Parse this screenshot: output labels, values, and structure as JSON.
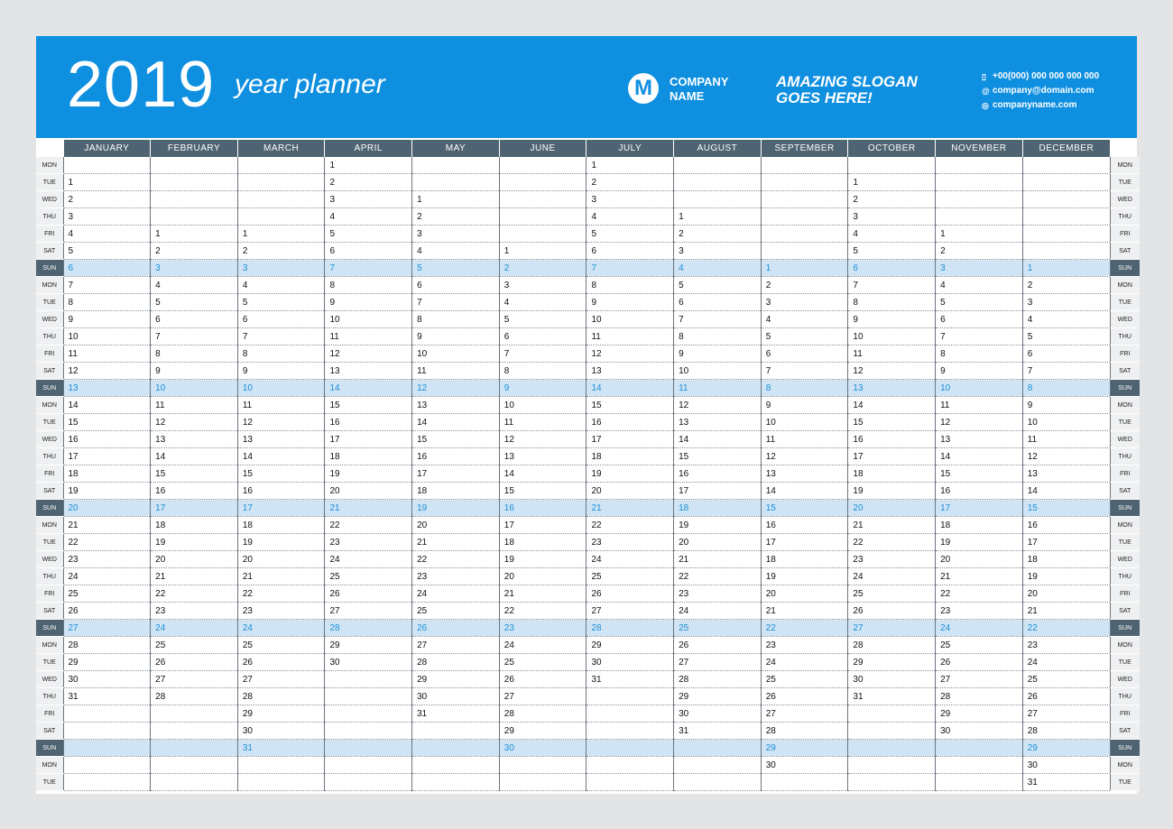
{
  "header": {
    "year": "2019",
    "subtitle": "year planner",
    "logo_letter": "M",
    "company_line1": "COMPANY",
    "company_line2": "NAME",
    "slogan_line1": "AMAZING SLOGAN",
    "slogan_line2": "GOES HERE!",
    "phone": "+00(000) 000 000 000 000",
    "email": "company@domain.com",
    "website": "companyname.com"
  },
  "colors": {
    "header_bg": "#0f8fe0",
    "month_header_bg": "#4f6472",
    "sunday_row_bg": "#cfe4f5",
    "sunday_text": "#1c8fd6"
  },
  "icons": {
    "phone": "phone-icon",
    "email": "email-icon",
    "web": "globe-icon",
    "logo": "m-logo-icon"
  },
  "months": [
    "JANUARY",
    "FEBRUARY",
    "MARCH",
    "APRIL",
    "MAY",
    "JUNE",
    "JULY",
    "AUGUST",
    "SEPTEMBER",
    "OCTOBER",
    "NOVEMBER",
    "DECEMBER"
  ],
  "rows": [
    {
      "label": "MON",
      "cells": [
        "",
        "",
        "",
        "1",
        "",
        "",
        "1",
        "",
        "",
        "",
        "",
        ""
      ]
    },
    {
      "label": "TUE",
      "cells": [
        "1",
        "",
        "",
        "2",
        "",
        "",
        "2",
        "",
        "",
        "1",
        "",
        ""
      ]
    },
    {
      "label": "WED",
      "cells": [
        "2",
        "",
        "",
        "3",
        "1",
        "",
        "3",
        "",
        "",
        "2",
        "",
        ""
      ]
    },
    {
      "label": "THU",
      "cells": [
        "3",
        "",
        "",
        "4",
        "2",
        "",
        "4",
        "1",
        "",
        "3",
        "",
        ""
      ]
    },
    {
      "label": "FRI",
      "cells": [
        "4",
        "1",
        "1",
        "5",
        "3",
        "",
        "5",
        "2",
        "",
        "4",
        "1",
        ""
      ]
    },
    {
      "label": "SAT",
      "cells": [
        "5",
        "2",
        "2",
        "6",
        "4",
        "1",
        "6",
        "3",
        "",
        "5",
        "2",
        ""
      ]
    },
    {
      "label": "SUN",
      "cells": [
        "6",
        "3",
        "3",
        "7",
        "5",
        "2",
        "7",
        "4",
        "1",
        "6",
        "3",
        "1"
      ]
    },
    {
      "label": "MON",
      "cells": [
        "7",
        "4",
        "4",
        "8",
        "6",
        "3",
        "8",
        "5",
        "2",
        "7",
        "4",
        "2"
      ]
    },
    {
      "label": "TUE",
      "cells": [
        "8",
        "5",
        "5",
        "9",
        "7",
        "4",
        "9",
        "6",
        "3",
        "8",
        "5",
        "3"
      ]
    },
    {
      "label": "WED",
      "cells": [
        "9",
        "6",
        "6",
        "10",
        "8",
        "5",
        "10",
        "7",
        "4",
        "9",
        "6",
        "4"
      ]
    },
    {
      "label": "THU",
      "cells": [
        "10",
        "7",
        "7",
        "11",
        "9",
        "6",
        "11",
        "8",
        "5",
        "10",
        "7",
        "5"
      ]
    },
    {
      "label": "FRI",
      "cells": [
        "11",
        "8",
        "8",
        "12",
        "10",
        "7",
        "12",
        "9",
        "6",
        "11",
        "8",
        "6"
      ]
    },
    {
      "label": "SAT",
      "cells": [
        "12",
        "9",
        "9",
        "13",
        "11",
        "8",
        "13",
        "10",
        "7",
        "12",
        "9",
        "7"
      ]
    },
    {
      "label": "SUN",
      "cells": [
        "13",
        "10",
        "10",
        "14",
        "12",
        "9",
        "14",
        "11",
        "8",
        "13",
        "10",
        "8"
      ]
    },
    {
      "label": "MON",
      "cells": [
        "14",
        "11",
        "11",
        "15",
        "13",
        "10",
        "15",
        "12",
        "9",
        "14",
        "11",
        "9"
      ]
    },
    {
      "label": "TUE",
      "cells": [
        "15",
        "12",
        "12",
        "16",
        "14",
        "11",
        "16",
        "13",
        "10",
        "15",
        "12",
        "10"
      ]
    },
    {
      "label": "WED",
      "cells": [
        "16",
        "13",
        "13",
        "17",
        "15",
        "12",
        "17",
        "14",
        "11",
        "16",
        "13",
        "11"
      ]
    },
    {
      "label": "THU",
      "cells": [
        "17",
        "14",
        "14",
        "18",
        "16",
        "13",
        "18",
        "15",
        "12",
        "17",
        "14",
        "12"
      ]
    },
    {
      "label": "FRI",
      "cells": [
        "18",
        "15",
        "15",
        "19",
        "17",
        "14",
        "19",
        "16",
        "13",
        "18",
        "15",
        "13"
      ]
    },
    {
      "label": "SAT",
      "cells": [
        "19",
        "16",
        "16",
        "20",
        "18",
        "15",
        "20",
        "17",
        "14",
        "19",
        "16",
        "14"
      ]
    },
    {
      "label": "SUN",
      "cells": [
        "20",
        "17",
        "17",
        "21",
        "19",
        "16",
        "21",
        "18",
        "15",
        "20",
        "17",
        "15"
      ]
    },
    {
      "label": "MON",
      "cells": [
        "21",
        "18",
        "18",
        "22",
        "20",
        "17",
        "22",
        "19",
        "16",
        "21",
        "18",
        "16"
      ]
    },
    {
      "label": "TUE",
      "cells": [
        "22",
        "19",
        "19",
        "23",
        "21",
        "18",
        "23",
        "20",
        "17",
        "22",
        "19",
        "17"
      ]
    },
    {
      "label": "WED",
      "cells": [
        "23",
        "20",
        "20",
        "24",
        "22",
        "19",
        "24",
        "21",
        "18",
        "23",
        "20",
        "18"
      ]
    },
    {
      "label": "THU",
      "cells": [
        "24",
        "21",
        "21",
        "25",
        "23",
        "20",
        "25",
        "22",
        "19",
        "24",
        "21",
        "19"
      ]
    },
    {
      "label": "FRI",
      "cells": [
        "25",
        "22",
        "22",
        "26",
        "24",
        "21",
        "26",
        "23",
        "20",
        "25",
        "22",
        "20"
      ]
    },
    {
      "label": "SAT",
      "cells": [
        "26",
        "23",
        "23",
        "27",
        "25",
        "22",
        "27",
        "24",
        "21",
        "26",
        "23",
        "21"
      ]
    },
    {
      "label": "SUN",
      "cells": [
        "27",
        "24",
        "24",
        "28",
        "26",
        "23",
        "28",
        "25",
        "22",
        "27",
        "24",
        "22"
      ]
    },
    {
      "label": "MON",
      "cells": [
        "28",
        "25",
        "25",
        "29",
        "27",
        "24",
        "29",
        "26",
        "23",
        "28",
        "25",
        "23"
      ]
    },
    {
      "label": "TUE",
      "cells": [
        "29",
        "26",
        "26",
        "30",
        "28",
        "25",
        "30",
        "27",
        "24",
        "29",
        "26",
        "24"
      ]
    },
    {
      "label": "WED",
      "cells": [
        "30",
        "27",
        "27",
        "",
        "29",
        "26",
        "31",
        "28",
        "25",
        "30",
        "27",
        "25"
      ]
    },
    {
      "label": "THU",
      "cells": [
        "31",
        "28",
        "28",
        "",
        "30",
        "27",
        "",
        "29",
        "26",
        "31",
        "28",
        "26"
      ]
    },
    {
      "label": "FRI",
      "cells": [
        "",
        "",
        "29",
        "",
        "31",
        "28",
        "",
        "30",
        "27",
        "",
        "29",
        "27"
      ]
    },
    {
      "label": "SAT",
      "cells": [
        "",
        "",
        "30",
        "",
        "",
        "29",
        "",
        "31",
        "28",
        "",
        "30",
        "28"
      ]
    },
    {
      "label": "SUN",
      "cells": [
        "",
        "",
        "31",
        "",
        "",
        "30",
        "",
        "",
        "29",
        "",
        "",
        "29"
      ]
    },
    {
      "label": "MON",
      "cells": [
        "",
        "",
        "",
        "",
        "",
        "",
        "",
        "",
        "30",
        "",
        "",
        "30"
      ]
    },
    {
      "label": "TUE",
      "cells": [
        "",
        "",
        "",
        "",
        "",
        "",
        "",
        "",
        "",
        "",
        "",
        "31"
      ]
    }
  ]
}
